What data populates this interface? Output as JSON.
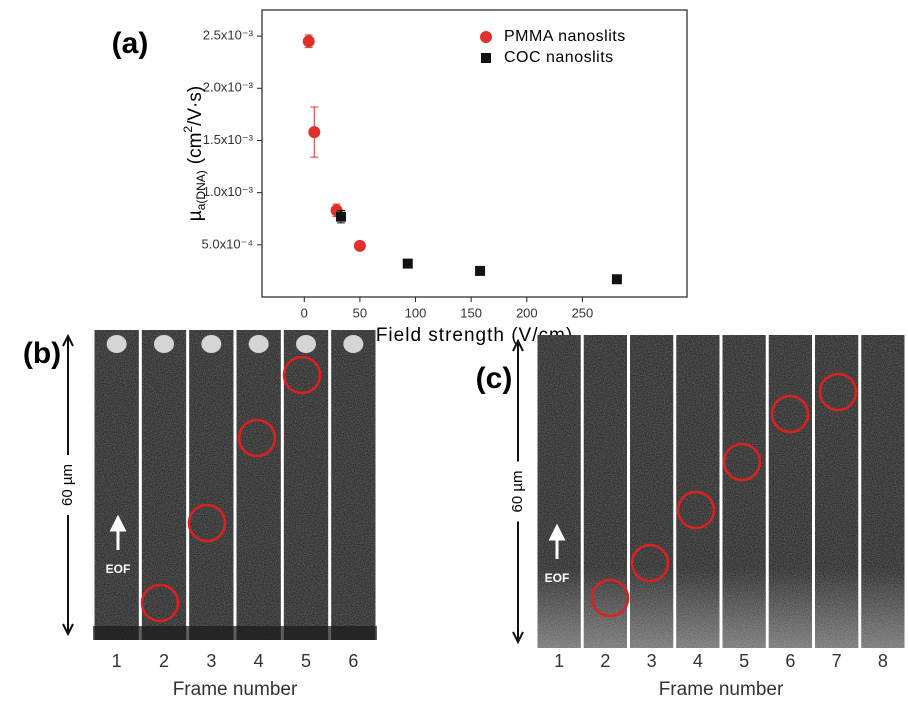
{
  "chart_data": {
    "type": "scatter",
    "panel_label": "(a)",
    "xlabel": "Field strength (V/cm)",
    "ylabel": {
      "symbol": "µ",
      "subscript": "a(DNA)",
      "unit_start": "(cm",
      "unit_power": "2",
      "unit_end": "/V·s)"
    },
    "xlim": [
      -38,
      344
    ],
    "xticks": [
      0,
      50,
      100,
      150,
      200,
      250
    ],
    "ylim": [
      0,
      0.00275
    ],
    "yticks": [
      {
        "value": 0.0005,
        "label": "5.0x10⁻⁴"
      },
      {
        "value": 0.001,
        "label": "1.0x10⁻³"
      },
      {
        "value": 0.0015,
        "label": "1.5x10⁻³"
      },
      {
        "value": 0.002,
        "label": "2.0x10⁻³"
      },
      {
        "value": 0.0025,
        "label": "2.5x10⁻³"
      }
    ],
    "legend": "top-right",
    "series": [
      {
        "name": "PMMA nanoslits",
        "color": "#e0302e",
        "marker": "circle",
        "x": [
          4,
          9,
          29,
          50
        ],
        "values": [
          0.00245,
          0.00158,
          0.00083,
          0.00049
        ],
        "errors": [
          6e-05,
          0.00024,
          6e-05,
          null
        ]
      },
      {
        "name": "COC nanoslits",
        "color": "#111111",
        "marker": "square",
        "x": [
          33,
          93,
          158,
          281
        ],
        "values": [
          0.00077,
          0.00032,
          0.00025,
          0.00017
        ],
        "errors": [
          6e-05,
          null,
          null,
          null
        ]
      }
    ]
  },
  "panel_b": {
    "label": "(b)",
    "scale": "60 µm",
    "flow": "EOF",
    "frames": [
      "1",
      "2",
      "3",
      "4",
      "5",
      "6"
    ],
    "xlabel": "Frame number"
  },
  "panel_c": {
    "label": "(c)",
    "scale": "60 µm",
    "flow": "EOF",
    "frames": [
      "1",
      "2",
      "3",
      "4",
      "5",
      "6",
      "7",
      "8"
    ],
    "xlabel": "Frame number"
  }
}
